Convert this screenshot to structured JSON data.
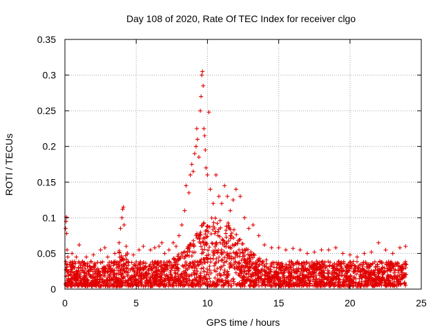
{
  "chart_data": {
    "type": "scatter",
    "title": "Day 108 of 2020, Rate Of TEC Index for receiver clgo",
    "xlabel": "GPS time / hours",
    "ylabel": "ROTI / TECUs",
    "xlim": [
      0,
      25
    ],
    "ylim": [
      0,
      0.35
    ],
    "x_ticks": [
      0,
      5,
      10,
      15,
      20,
      25
    ],
    "y_ticks": [
      0,
      0.05,
      0.1,
      0.15,
      0.2,
      0.25,
      0.3,
      0.35
    ],
    "x_tick_labels": [
      "0",
      "5",
      "10",
      "15",
      "20",
      "25"
    ],
    "y_tick_labels": [
      "0",
      "0.05",
      "0.1",
      "0.15",
      "0.2",
      "0.25",
      "0.3",
      "0.35"
    ],
    "grid": true,
    "marker": "plus",
    "color": "#e00000",
    "series": [
      {
        "values": [
          [
            0.05,
            0.085
          ],
          [
            0.08,
            0.095
          ],
          [
            0.1,
            0.101
          ],
          [
            0.12,
            0.078
          ],
          [
            0.15,
            0.055
          ],
          [
            0.2,
            0.045
          ],
          [
            0.5,
            0.05
          ],
          [
            0.8,
            0.045
          ],
          [
            1.0,
            0.062
          ],
          [
            1.5,
            0.045
          ],
          [
            2.0,
            0.048
          ],
          [
            2.5,
            0.055
          ],
          [
            2.8,
            0.058
          ],
          [
            3.0,
            0.045
          ],
          [
            3.5,
            0.05
          ],
          [
            3.8,
            0.065
          ],
          [
            3.9,
            0.085
          ],
          [
            4.0,
            0.1
          ],
          [
            4.05,
            0.112
          ],
          [
            4.1,
            0.115
          ],
          [
            4.15,
            0.09
          ],
          [
            4.3,
            0.06
          ],
          [
            4.8,
            0.048
          ],
          [
            5.2,
            0.055
          ],
          [
            5.5,
            0.06
          ],
          [
            6.0,
            0.055
          ],
          [
            6.3,
            0.058
          ],
          [
            6.6,
            0.06
          ],
          [
            6.8,
            0.065
          ],
          [
            7.0,
            0.05
          ],
          [
            7.3,
            0.055
          ],
          [
            7.6,
            0.065
          ],
          [
            7.8,
            0.06
          ],
          [
            8.0,
            0.075
          ],
          [
            8.2,
            0.09
          ],
          [
            8.4,
            0.11
          ],
          [
            8.5,
            0.145
          ],
          [
            8.7,
            0.135
          ],
          [
            8.8,
            0.16
          ],
          [
            8.9,
            0.175
          ],
          [
            9.0,
            0.165
          ],
          [
            9.1,
            0.19
          ],
          [
            9.2,
            0.2
          ],
          [
            9.25,
            0.225
          ],
          [
            9.3,
            0.21
          ],
          [
            9.4,
            0.185
          ],
          [
            9.5,
            0.25
          ],
          [
            9.55,
            0.27
          ],
          [
            9.6,
            0.3
          ],
          [
            9.65,
            0.305
          ],
          [
            9.7,
            0.285
          ],
          [
            9.75,
            0.225
          ],
          [
            9.8,
            0.215
          ],
          [
            9.85,
            0.195
          ],
          [
            9.9,
            0.17
          ],
          [
            10.0,
            0.16
          ],
          [
            10.1,
            0.248
          ],
          [
            10.2,
            0.14
          ],
          [
            10.4,
            0.12
          ],
          [
            10.6,
            0.16
          ],
          [
            10.8,
            0.13
          ],
          [
            11.0,
            0.12
          ],
          [
            11.2,
            0.145
          ],
          [
            11.4,
            0.13
          ],
          [
            11.6,
            0.11
          ],
          [
            11.8,
            0.125
          ],
          [
            12.0,
            0.14
          ],
          [
            12.3,
            0.13
          ],
          [
            12.6,
            0.1
          ],
          [
            12.9,
            0.085
          ],
          [
            13.2,
            0.09
          ],
          [
            13.6,
            0.075
          ],
          [
            14.0,
            0.062
          ],
          [
            14.5,
            0.058
          ],
          [
            15.0,
            0.058
          ],
          [
            15.5,
            0.055
          ],
          [
            16.0,
            0.057
          ],
          [
            16.5,
            0.055
          ],
          [
            17.0,
            0.05
          ],
          [
            17.5,
            0.052
          ],
          [
            18.0,
            0.055
          ],
          [
            18.5,
            0.055
          ],
          [
            19.0,
            0.058
          ],
          [
            19.5,
            0.05
          ],
          [
            20.0,
            0.048
          ],
          [
            20.5,
            0.045
          ],
          [
            21.0,
            0.05
          ],
          [
            21.5,
            0.052
          ],
          [
            22.0,
            0.065
          ],
          [
            22.5,
            0.055
          ],
          [
            23.0,
            0.05
          ],
          [
            23.5,
            0.058
          ],
          [
            23.9,
            0.06
          ]
        ]
      }
    ]
  }
}
